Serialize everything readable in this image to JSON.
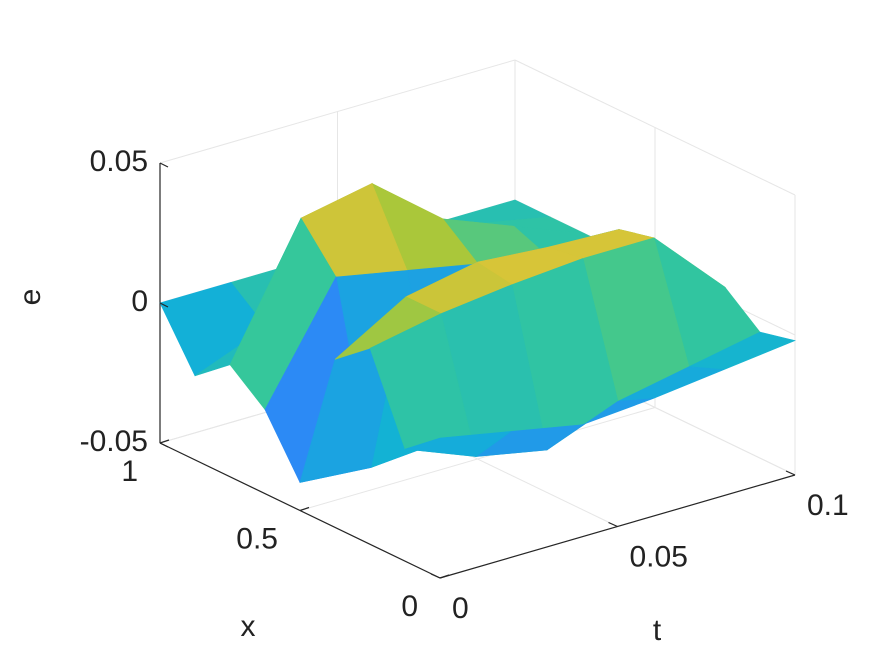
{
  "chart_data": {
    "type": "surface",
    "t_label": "t",
    "x_label": "x",
    "z_label": "e",
    "t": [
      0,
      0.02,
      0.04,
      0.06,
      0.08,
      0.1
    ],
    "x": [
      0,
      0.125,
      0.25,
      0.375,
      0.5,
      0.625,
      0.75,
      0.875,
      1
    ],
    "z": [
      [
        0,
        -0.005,
        -0.01,
        -0.008,
        -0.005,
        -0.002
      ],
      [
        -0.01,
        -0.02,
        -0.025,
        -0.015,
        -0.01,
        -0.005
      ],
      [
        0.02,
        0.025,
        0.028,
        0.03,
        0.03,
        0.005
      ],
      [
        0.01,
        0.025,
        0.03,
        0.028,
        0.027,
        0
      ],
      [
        -0.04,
        -0.042,
        -0.04,
        -0.035,
        -0.03,
        -0.01
      ],
      [
        -0.02,
        0.02,
        0.015,
        0.01,
        0.005,
        0
      ],
      [
        -0.01,
        0.035,
        0.04,
        0.02,
        0.01,
        0
      ],
      [
        -0.02,
        -0.01,
        0.015,
        0.01,
        0.005,
        0
      ],
      [
        0,
        0,
        0,
        0,
        0,
        0
      ]
    ],
    "tlim": [
      0,
      0.1
    ],
    "tticks": [
      0,
      0.05,
      0.1
    ],
    "xlim": [
      0,
      1
    ],
    "xticks": [
      0,
      0.5,
      1
    ],
    "zlim": [
      -0.05,
      0.05
    ],
    "zticks": [
      -0.05,
      0,
      0.05
    ],
    "grid": true,
    "colormap": "parula"
  }
}
